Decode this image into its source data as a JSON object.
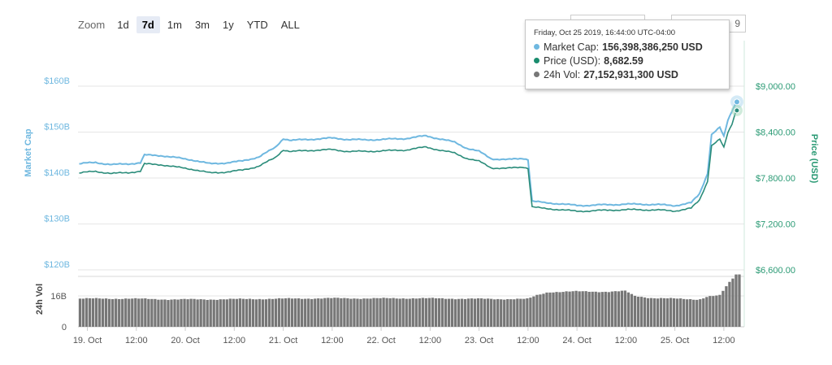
{
  "zoom": {
    "label": "Zoom",
    "buttons": [
      {
        "label": "1d",
        "active": false
      },
      {
        "label": "7d",
        "active": true
      },
      {
        "label": "1m",
        "active": false
      },
      {
        "label": "3m",
        "active": false
      },
      {
        "label": "1y",
        "active": false
      },
      {
        "label": "YTD",
        "active": false
      },
      {
        "label": "ALL",
        "active": false
      }
    ]
  },
  "range": {
    "to_value": "9"
  },
  "tooltip": {
    "date": "Friday, Oct 25 2019, 16:44:00 UTC-04:00",
    "market_cap_label": "Market Cap:",
    "market_cap_value": "156,398,386,250 USD",
    "price_label": "Price (USD):",
    "price_value": "8,682.59",
    "vol_label": "24h Vol:",
    "vol_value": "27,152,931,300 USD"
  },
  "colors": {
    "market_cap": "#6fb8e0",
    "price": "#2a8c7a",
    "volume": "#777777",
    "left_axis": "#6fb8e0",
    "right_axis": "#2a9a74"
  },
  "chart_data": {
    "type": "line",
    "x_tick_labels": [
      "19. Oct",
      "12:00",
      "20. Oct",
      "12:00",
      "21. Oct",
      "12:00",
      "22. Oct",
      "12:00",
      "23. Oct",
      "12:00",
      "24. Oct",
      "12:00",
      "25. Oct",
      "12:00"
    ],
    "x_tick_hours": [
      0,
      12,
      24,
      36,
      48,
      60,
      72,
      84,
      96,
      108,
      120,
      132,
      144,
      156
    ],
    "x_range_hours": [
      -2.3,
      161
    ],
    "left_axis": {
      "label": "Market Cap",
      "ticks": [
        "$160B",
        "$150B",
        "$140B",
        "$130B",
        "$120B"
      ],
      "tick_values": [
        160,
        150,
        140,
        130,
        120
      ],
      "unit": "B USD"
    },
    "right_axis": {
      "label": "Price (USD)",
      "ticks": [
        "$9,000.00",
        "$8,400.00",
        "$7,800.00",
        "$7,200.00",
        "$6,600.00"
      ],
      "tick_values": [
        9000,
        8400,
        7800,
        7200,
        6600
      ]
    },
    "volume_axis": {
      "label": "24h Vol",
      "ticks": [
        "16B",
        "0"
      ],
      "tick_values": [
        16,
        0
      ],
      "unit": "B USD"
    },
    "series": [
      {
        "name": "Market Cap",
        "axis": "left",
        "points": [
          [
            -2,
            143.1
          ],
          [
            2,
            143.4
          ],
          [
            6,
            142.9
          ],
          [
            10,
            143.1
          ],
          [
            13,
            143.3
          ],
          [
            14,
            145.0
          ],
          [
            18,
            144.9
          ],
          [
            22,
            144.4
          ],
          [
            26,
            143.9
          ],
          [
            30,
            143.1
          ],
          [
            34,
            143.3
          ],
          [
            38,
            143.7
          ],
          [
            42,
            144.6
          ],
          [
            46,
            146.6
          ],
          [
            48,
            148.6
          ],
          [
            50,
            148.2
          ],
          [
            56,
            148.5
          ],
          [
            60,
            148.7
          ],
          [
            64,
            148.4
          ],
          [
            68,
            148.3
          ],
          [
            72,
            148.4
          ],
          [
            78,
            148.6
          ],
          [
            83,
            149.2
          ],
          [
            86,
            148.6
          ],
          [
            90,
            147.8
          ],
          [
            93,
            146.5
          ],
          [
            96,
            145.8
          ],
          [
            99,
            144.2
          ],
          [
            103,
            144.0
          ],
          [
            107,
            144.3
          ],
          [
            108,
            144.0
          ],
          [
            109,
            135.0
          ],
          [
            112,
            134.6
          ],
          [
            116,
            134.4
          ],
          [
            120,
            134.0
          ],
          [
            124,
            134.1
          ],
          [
            128,
            134.2
          ],
          [
            132,
            134.3
          ],
          [
            136,
            134.3
          ],
          [
            140,
            134.2
          ],
          [
            144,
            134.0
          ],
          [
            148,
            134.6
          ],
          [
            150,
            136.5
          ],
          [
            152,
            141.0
          ],
          [
            153,
            149.5
          ],
          [
            155,
            151.0
          ],
          [
            156,
            149.0
          ],
          [
            157,
            152.6
          ],
          [
            158,
            154.5
          ],
          [
            159,
            156.4
          ]
        ]
      },
      {
        "name": "Price (USD)",
        "axis": "right",
        "points": [
          [
            -2,
            7865
          ],
          [
            2,
            7888
          ],
          [
            6,
            7858
          ],
          [
            10,
            7872
          ],
          [
            13,
            7888
          ],
          [
            14,
            7983
          ],
          [
            18,
            7975
          ],
          [
            22,
            7941
          ],
          [
            26,
            7913
          ],
          [
            30,
            7866
          ],
          [
            34,
            7879
          ],
          [
            38,
            7902
          ],
          [
            42,
            7956
          ],
          [
            46,
            8063
          ],
          [
            48,
            8169
          ],
          [
            50,
            8146
          ],
          [
            56,
            8165
          ],
          [
            60,
            8170
          ],
          [
            64,
            8148
          ],
          [
            68,
            8147
          ],
          [
            72,
            8154
          ],
          [
            78,
            8166
          ],
          [
            83,
            8205
          ],
          [
            86,
            8169
          ],
          [
            90,
            8125
          ],
          [
            93,
            8058
          ],
          [
            96,
            8018
          ],
          [
            99,
            7933
          ],
          [
            103,
            7926
          ],
          [
            107,
            7945
          ],
          [
            108,
            7927
          ],
          [
            109,
            7425
          ],
          [
            112,
            7400
          ],
          [
            116,
            7388
          ],
          [
            120,
            7365
          ],
          [
            124,
            7373
          ],
          [
            128,
            7380
          ],
          [
            132,
            7386
          ],
          [
            136,
            7386
          ],
          [
            140,
            7381
          ],
          [
            144,
            7370
          ],
          [
            148,
            7405
          ],
          [
            150,
            7510
          ],
          [
            152,
            7758
          ],
          [
            153,
            8225
          ],
          [
            155,
            8305
          ],
          [
            156,
            8195
          ],
          [
            157,
            8394
          ],
          [
            158,
            8500
          ],
          [
            159,
            8682.59
          ]
        ]
      },
      {
        "name": "24h Vol",
        "axis": "volume",
        "points": [
          [
            -2,
            14.6
          ],
          [
            10,
            14.6
          ],
          [
            20,
            14.2
          ],
          [
            30,
            14.2
          ],
          [
            40,
            14.4
          ],
          [
            50,
            14.6
          ],
          [
            60,
            14.8
          ],
          [
            70,
            14.7
          ],
          [
            80,
            14.8
          ],
          [
            90,
            14.6
          ],
          [
            100,
            14.4
          ],
          [
            108,
            14.4
          ],
          [
            110,
            16.2
          ],
          [
            113,
            18.0
          ],
          [
            120,
            18.3
          ],
          [
            128,
            18.2
          ],
          [
            132,
            18.5
          ],
          [
            134,
            16.0
          ],
          [
            138,
            15.0
          ],
          [
            142,
            14.7
          ],
          [
            146,
            14.4
          ],
          [
            150,
            14.2
          ],
          [
            152,
            15.7
          ],
          [
            155,
            16.2
          ],
          [
            157,
            22.0
          ],
          [
            159,
            27.15
          ]
        ]
      }
    ],
    "hover_hour": 159
  }
}
